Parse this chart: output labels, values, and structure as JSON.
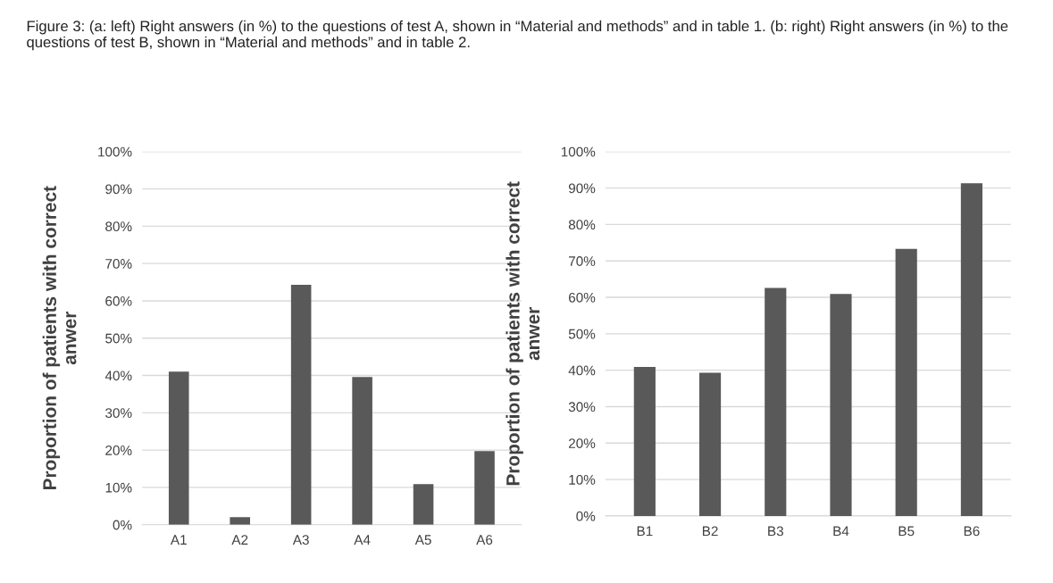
{
  "chart_data": [
    {
      "type": "bar",
      "annotations": [
        "Figure 3: (a: left) Right answers (in %) to the questions of test A, shown in “Material and methods” and in table 1. (b: right) Right answers (in %) to the questions of test B, shown in “Material and methods” and in table 2."
      ],
      "ylabel": "Proportion of patients with correct\nanwer",
      "categories": [
        "A1",
        "A2",
        "A3",
        "A4",
        "A5",
        "A6"
      ],
      "values": [
        41.0,
        2.0,
        64.3,
        39.6,
        10.9,
        19.7
      ],
      "color": "#595959",
      "ylim": [
        0,
        100
      ],
      "yticks": [
        {
          "value": 0,
          "label": "0%"
        },
        {
          "value": 10,
          "label": "10%"
        },
        {
          "value": 20,
          "label": "20%"
        },
        {
          "value": 30,
          "label": "30%"
        },
        {
          "value": 40,
          "label": "40%"
        },
        {
          "value": 50,
          "label": "50%"
        },
        {
          "value": 60,
          "label": "60%"
        },
        {
          "value": 70,
          "label": "70%"
        },
        {
          "value": 80,
          "label": "80%"
        },
        {
          "value": 90,
          "label": "90%"
        },
        {
          "value": 100,
          "label": "100%"
        }
      ],
      "grid": "y"
    },
    {
      "type": "bar",
      "ylabel": "Proportion of patients with correct\nanwer",
      "categories": [
        "B1",
        "B2",
        "B3",
        "B4",
        "B5",
        "B6"
      ],
      "values": [
        40.9,
        39.3,
        62.6,
        60.9,
        73.3,
        91.3
      ],
      "color": "#595959",
      "ylim": [
        0,
        100
      ],
      "yticks": [
        {
          "value": 0,
          "label": "0%"
        },
        {
          "value": 10,
          "label": "10%"
        },
        {
          "value": 20,
          "label": "20%"
        },
        {
          "value": 30,
          "label": "30%"
        },
        {
          "value": 40,
          "label": "40%"
        },
        {
          "value": 50,
          "label": "50%"
        },
        {
          "value": 60,
          "label": "60%"
        },
        {
          "value": 70,
          "label": "70%"
        },
        {
          "value": 80,
          "label": "80%"
        },
        {
          "value": 90,
          "label": "90%"
        },
        {
          "value": 100,
          "label": "100%"
        }
      ],
      "grid": "y"
    }
  ]
}
